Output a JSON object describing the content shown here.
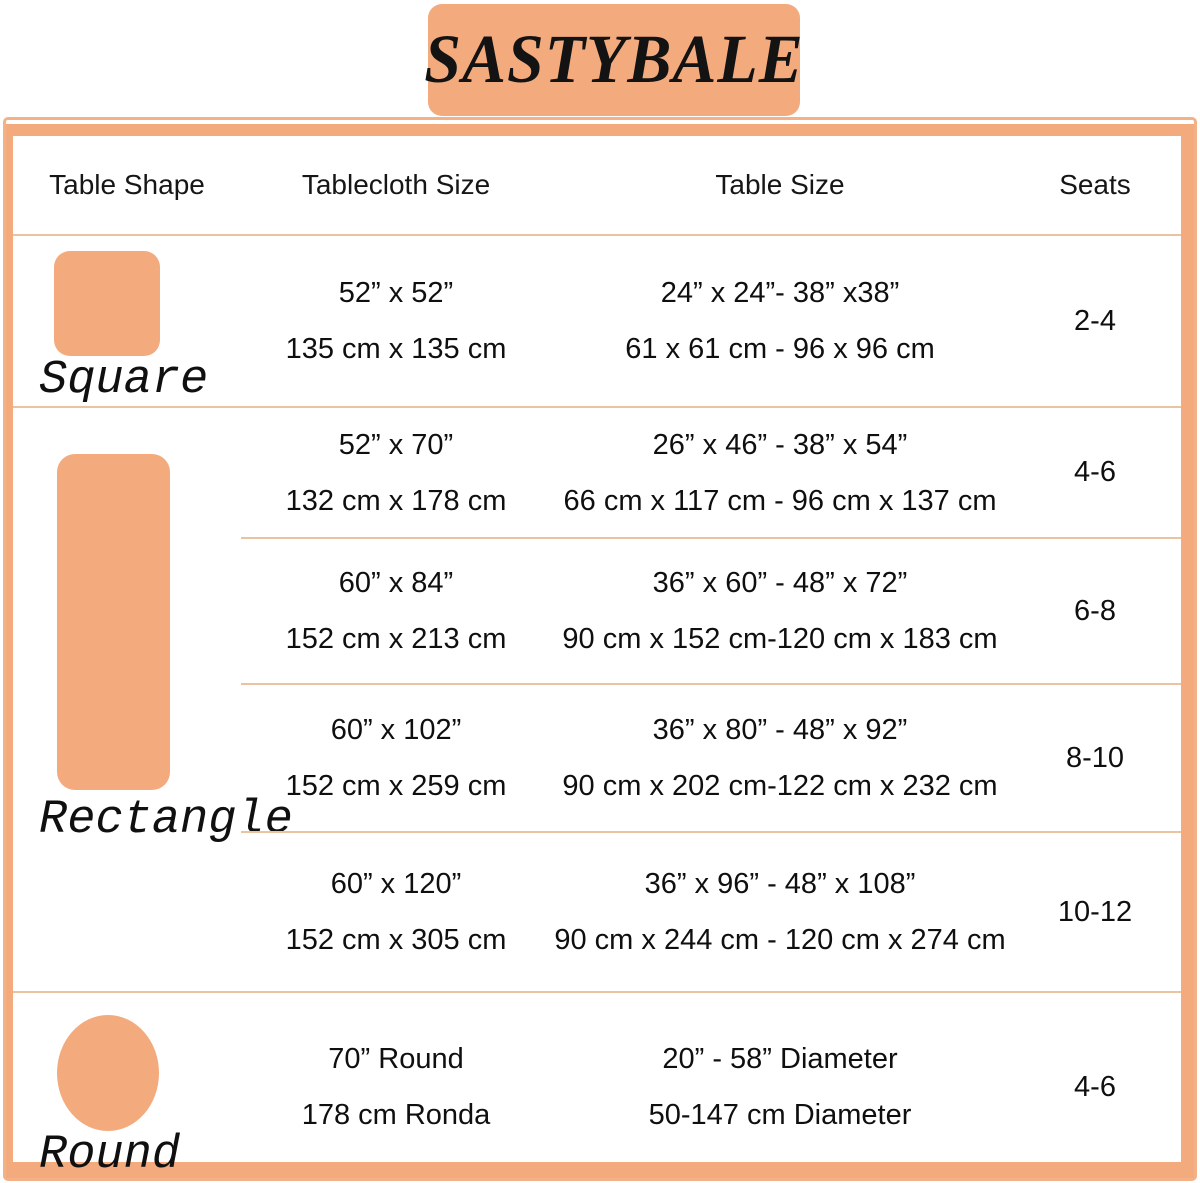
{
  "brand": "SASTYBALE",
  "colors": {
    "accent": "#f3ab7e",
    "divider": "#eac49f",
    "text": "#0f0f0f"
  },
  "table": {
    "headers": [
      "Table Shape",
      "Tablecloth Size",
      "Table Size",
      "Seats"
    ],
    "groups": [
      {
        "shape": "Square",
        "rows": [
          {
            "tc_in": "52” x 52”",
            "tc_cm": "135 cm x 135 cm",
            "tb_in": "24” x 24”- 38” x38”",
            "tb_cm": "61 x 61 cm - 96 x 96 cm",
            "seats": "2-4"
          }
        ]
      },
      {
        "shape": "Rectangle",
        "rows": [
          {
            "tc_in": "52” x 70”",
            "tc_cm": "132 cm x 178 cm",
            "tb_in": "26” x 46” - 38” x 54”",
            "tb_cm": "66 cm x 117 cm - 96 cm x 137 cm",
            "seats": "4-6"
          },
          {
            "tc_in": "60” x 84”",
            "tc_cm": "152 cm x 213 cm",
            "tb_in": "36” x 60” - 48” x 72”",
            "tb_cm": "90 cm x 152 cm-120 cm x 183 cm",
            "seats": "6-8"
          },
          {
            "tc_in": "60” x 102”",
            "tc_cm": "152 cm x 259 cm",
            "tb_in": "36” x 80” - 48” x 92”",
            "tb_cm": "90 cm x 202 cm-122 cm x 232 cm",
            "seats": "8-10"
          },
          {
            "tc_in": "60” x 120”",
            "tc_cm": "152 cm x 305 cm",
            "tb_in": "36” x 96” - 48” x 108”",
            "tb_cm": "90 cm x 244 cm - 120 cm x 274 cm",
            "seats": "10-12"
          }
        ]
      },
      {
        "shape": "Round",
        "rows": [
          {
            "tc_in": "70” Round",
            "tc_cm": "178 cm Ronda",
            "tb_in": "20” - 58” Diameter",
            "tb_cm": "50-147 cm Diameter",
            "seats": "4-6"
          }
        ]
      }
    ]
  },
  "chart_data": {
    "type": "table",
    "title": "SASTYBALE",
    "columns": [
      "Table Shape",
      "Tablecloth Size",
      "Table Size",
      "Seats"
    ],
    "rows": [
      [
        "Square",
        "52” x 52” / 135 cm x 135 cm",
        "24” x 24”- 38” x38” / 61 x 61 cm - 96 x 96 cm",
        "2-4"
      ],
      [
        "Rectangle",
        "52” x 70” / 132 cm x 178 cm",
        "26” x 46” - 38” x 54” / 66 cm x 117 cm - 96 cm x 137 cm",
        "4-6"
      ],
      [
        "Rectangle",
        "60” x 84” / 152 cm x 213 cm",
        "36” x 60” - 48” x 72” / 90 cm x 152 cm-120 cm x 183 cm",
        "6-8"
      ],
      [
        "Rectangle",
        "60” x 102” / 152 cm x 259 cm",
        "36” x 80” - 48” x 92” / 90 cm x 202 cm-122 cm x 232 cm",
        "8-10"
      ],
      [
        "Rectangle",
        "60” x 120” / 152 cm x 305 cm",
        "36” x 96” - 48” x 108” / 90 cm x 244 cm - 120 cm x 274 cm",
        "10-12"
      ],
      [
        "Round",
        "70” Round / 178 cm Ronda",
        "20” - 58” Diameter / 50-147 cm Diameter",
        "4-6"
      ]
    ]
  }
}
